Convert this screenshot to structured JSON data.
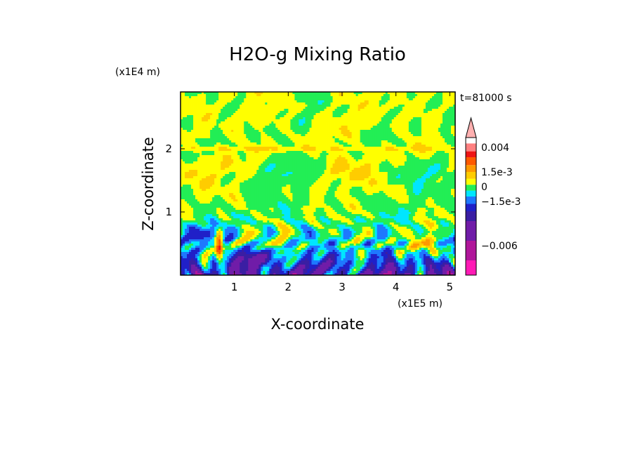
{
  "chart_data": {
    "type": "heatmap",
    "title": "H2O-g Mixing Ratio",
    "xlabel": "X-coordinate",
    "ylabel": "Z-coordinate",
    "x_units": "(x1E5 m)",
    "y_units": "(x1E4 m)",
    "time_label": "t=81000 s",
    "xlim": [
      0,
      5.1
    ],
    "ylim": [
      0,
      2.9
    ],
    "x_ticks": [
      1,
      2,
      3,
      4,
      5
    ],
    "y_ticks": [
      1,
      2
    ],
    "colorbar": {
      "tick_labels": [
        "0.004",
        "1.5e-3",
        "0",
        "−1.5e-3",
        "−0.006"
      ],
      "tick_values": [
        0.004,
        0.0015,
        0,
        -0.0015,
        -0.006
      ],
      "extend": "max",
      "range": [
        -0.009,
        0.005
      ],
      "levels": [
        {
          "lo": -0.009,
          "hi": -0.0075,
          "color": "#ff1ab5"
        },
        {
          "lo": -0.0075,
          "hi": -0.0055,
          "color": "#b0169a"
        },
        {
          "lo": -0.0055,
          "hi": -0.0035,
          "color": "#701ca8"
        },
        {
          "lo": -0.0035,
          "hi": -0.0025,
          "color": "#3a1ea3"
        },
        {
          "lo": -0.0025,
          "hi": -0.00175,
          "color": "#2020c8"
        },
        {
          "lo": -0.00175,
          "hi": -0.001,
          "color": "#1e78ff"
        },
        {
          "lo": -0.001,
          "hi": -0.0004,
          "color": "#00e6ff"
        },
        {
          "lo": -0.0004,
          "hi": 0.0002,
          "color": "#22ee55"
        },
        {
          "lo": 0.0002,
          "hi": 0.0008,
          "color": "#ffff00"
        },
        {
          "lo": 0.0008,
          "hi": 0.0015,
          "color": "#ffcc00"
        },
        {
          "lo": 0.0015,
          "hi": 0.0022,
          "color": "#ff9900"
        },
        {
          "lo": 0.0022,
          "hi": 0.003,
          "color": "#ff5a00"
        },
        {
          "lo": 0.003,
          "hi": 0.0036,
          "color": "#ee1515"
        },
        {
          "lo": 0.0036,
          "hi": 0.0044,
          "color": "#ff8080"
        }
      ],
      "extend_color": "#ffb0b0"
    }
  }
}
